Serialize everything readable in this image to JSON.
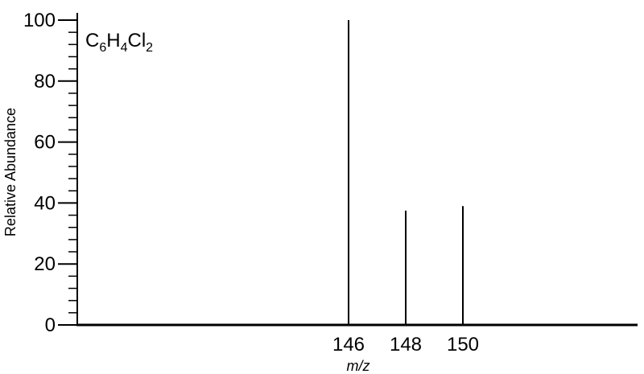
{
  "chart_data": {
    "type": "bar",
    "title": "",
    "formula": {
      "parts": [
        {
          "text": "C",
          "sub": false
        },
        {
          "text": "6",
          "sub": true
        },
        {
          "text": "H",
          "sub": false
        },
        {
          "text": "4",
          "sub": true
        },
        {
          "text": "Cl",
          "sub": false
        },
        {
          "text": "2",
          "sub": true
        }
      ]
    },
    "xlabel": "m/z",
    "ylabel": "Relative Abundance",
    "x_ticks": [
      146,
      148,
      150
    ],
    "y_ticks": [
      0,
      20,
      40,
      60,
      80,
      100
    ],
    "ylim": [
      0,
      100
    ],
    "xlim": [
      136.5,
      156.5
    ],
    "y_minor_step": 4,
    "grid": false,
    "series": [
      {
        "points": [
          {
            "x": 146,
            "y": 100
          },
          {
            "x": 148,
            "y": 37.5
          },
          {
            "x": 150,
            "y": 39
          }
        ]
      }
    ],
    "colors": {
      "axis": "#000000",
      "peaks": "#000000"
    }
  }
}
